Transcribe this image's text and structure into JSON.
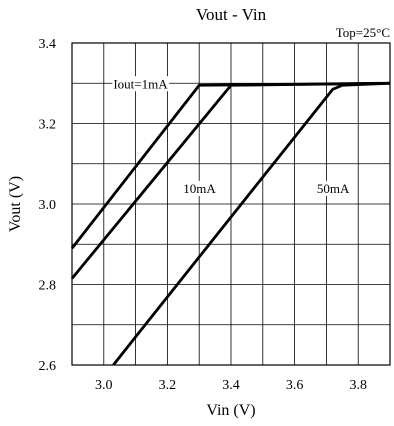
{
  "chart_data": {
    "type": "line",
    "title": "Vout - Vin",
    "xlabel": "Vin (V)",
    "ylabel": "Vout (V)",
    "xlim": [
      2.9,
      3.9
    ],
    "ylim": [
      2.6,
      3.4
    ],
    "x_ticks": [
      3.0,
      3.2,
      3.4,
      3.6,
      3.8
    ],
    "x_tick_labels": [
      "3.0",
      "3.2",
      "3.4",
      "3.6",
      "3.8"
    ],
    "y_ticks": [
      2.6,
      2.8,
      3.0,
      3.2,
      3.4
    ],
    "y_tick_labels": [
      "2.6",
      "2.8",
      "3.0",
      "3.2",
      "3.4"
    ],
    "grid": true,
    "grid_x_step": 0.1,
    "grid_y_step": 0.1,
    "annotations": [
      "Top=25°C"
    ],
    "line_color": "#000000",
    "series": [
      {
        "name": "Iout=1mA",
        "x": [
          2.9,
          3.3,
          3.9
        ],
        "y": [
          2.89,
          3.295,
          3.3
        ]
      },
      {
        "name": "10mA",
        "x": [
          2.9,
          3.4,
          3.9
        ],
        "y": [
          2.815,
          3.295,
          3.3
        ]
      },
      {
        "name": "50mA",
        "x": [
          3.03,
          3.1,
          3.72,
          3.75,
          3.9
        ],
        "y": [
          2.6,
          2.67,
          3.285,
          3.295,
          3.3
        ]
      }
    ]
  }
}
